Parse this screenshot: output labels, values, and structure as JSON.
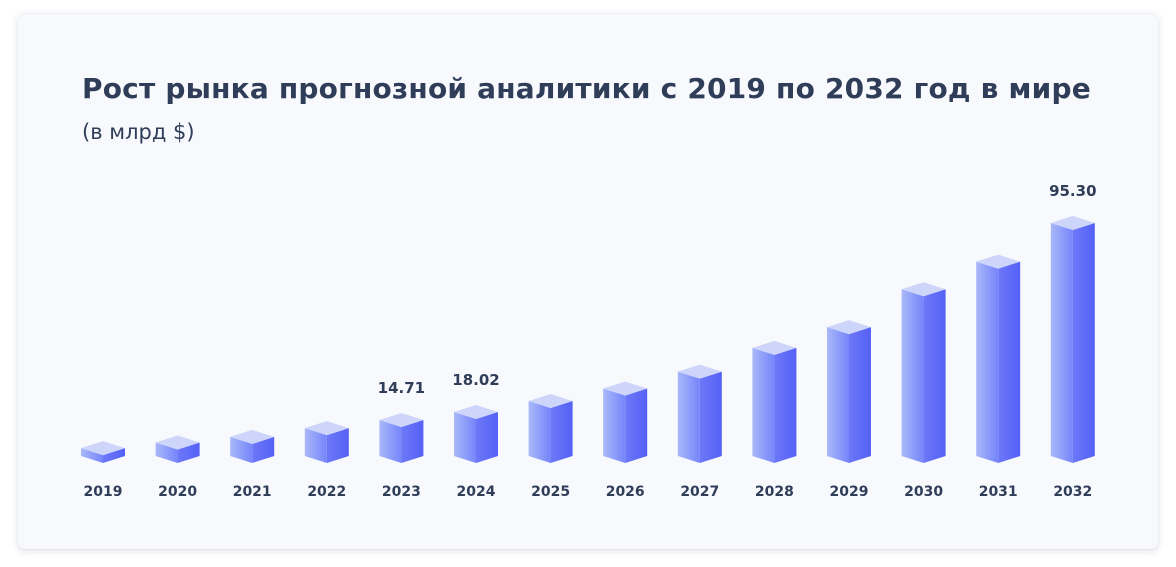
{
  "chart_data": {
    "type": "bar",
    "title": "Рост рынка прогнозной аналитики с 2019 по 2032 год в мире",
    "subtitle": "(в млрд $)",
    "categories": [
      "2019",
      "2020",
      "2021",
      "2022",
      "2023",
      "2024",
      "2025",
      "2026",
      "2027",
      "2028",
      "2029",
      "2030",
      "2031",
      "2032"
    ],
    "values": [
      3.2,
      5.5,
      7.8,
      11.4,
      14.71,
      18.02,
      22.5,
      27.6,
      34.5,
      44.2,
      52.7,
      68.2,
      79.5,
      95.3
    ],
    "data_labels": [
      {
        "category": "2023",
        "text": "14.71"
      },
      {
        "category": "2024",
        "text": "18.02"
      },
      {
        "category": "2032",
        "text": "95.30"
      }
    ],
    "ylim": [
      0,
      95.3
    ],
    "grid": false,
    "colors": {
      "bar_front_light": "#a9b8f8",
      "bar_front_dark": "#7585fb",
      "bar_side_light": "#6d78f8",
      "bar_side_dark": "#5461f5",
      "bar_top": "#cdd5fb",
      "text": "#2f3d58"
    }
  }
}
